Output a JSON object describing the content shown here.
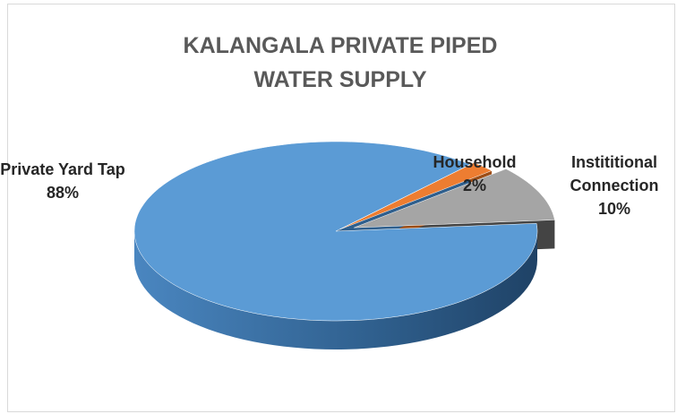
{
  "chart_data": {
    "type": "pie",
    "title": "KALANGALA PRIVATE PIPED WATER SUPPLY",
    "categories": [
      "Private Yard Tap",
      "Household",
      "Instititional Connection"
    ],
    "values": [
      88,
      2,
      10
    ],
    "value_labels": [
      "88%",
      "2%",
      "10%"
    ],
    "colors": [
      "#5b9bd5",
      "#ed7d31",
      "#a5a5a5"
    ]
  }
}
